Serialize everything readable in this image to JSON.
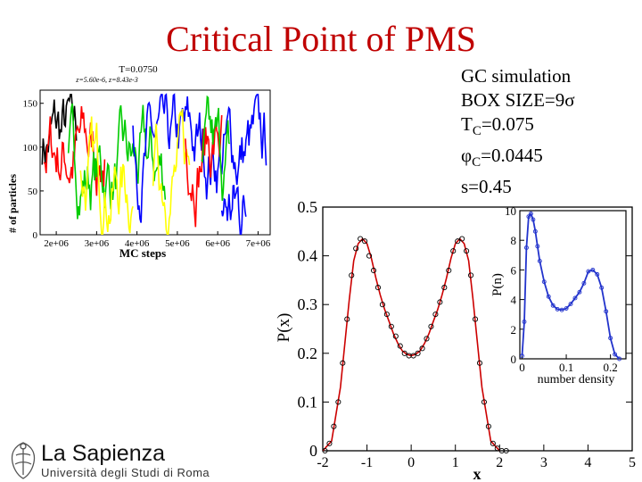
{
  "slide": {
    "title": "Critical Point of PMS",
    "info_lines": [
      {
        "main": "GC simulation"
      },
      {
        "main": "BOX SIZE=9",
        "greek": "σ"
      },
      {
        "main": "T",
        "sub": "C",
        "tail": "=0.075"
      },
      {
        "greek": "φ",
        "sub": "C",
        "tail": "=0.0445"
      },
      {
        "main": "s=0.45"
      }
    ],
    "logo_name": "La Sapienza",
    "logo_sub": "Università degli Studi di Roma"
  },
  "chart_data": [
    {
      "id": "mc_trace",
      "type": "line",
      "title": "T=0.0750",
      "subtitle": "z=5.60e-6, z=8.43e-3",
      "xlabel": "MC steps",
      "ylabel": "# of particles",
      "x_tick_labels": [
        "2e+06",
        "3e+06",
        "4e+06",
        "5e+06",
        "6e+06",
        "7e+06"
      ],
      "y_tick_labels": [
        "0",
        "50",
        "100",
        "150"
      ],
      "xlim": [
        1600000,
        7300000
      ],
      "ylim": [
        0,
        165
      ],
      "series_colors": [
        "#000000",
        "#ff0000",
        "#00cc00",
        "#0000ff",
        "#ffff00"
      ],
      "segments": [
        {
          "color": "#000000",
          "x_range": [
            1650000,
            2500000
          ],
          "center": 110
        },
        {
          "color": "#ff0000",
          "x_range": [
            1700000,
            3200000
          ],
          "center": 95
        },
        {
          "color": "#00cc00",
          "x_range": [
            2300000,
            4700000
          ],
          "center": 70
        },
        {
          "color": "#ffff00",
          "x_range": [
            2600000,
            3900000
          ],
          "center": 60
        },
        {
          "color": "#0000ff",
          "x_range": [
            3900000,
            7200000
          ],
          "center": 95
        },
        {
          "color": "#ffff00",
          "x_range": [
            4400000,
            5300000
          ],
          "center": 70
        },
        {
          "color": "#ff0000",
          "x_range": [
            5200000,
            6100000
          ],
          "center": 110
        },
        {
          "color": "#00cc00",
          "x_range": [
            5600000,
            6300000
          ],
          "center": 75
        },
        {
          "color": "#0000ff",
          "x_range": [
            6100000,
            6700000
          ],
          "center": 30
        }
      ]
    },
    {
      "id": "px",
      "type": "line",
      "xlabel": "x",
      "ylabel": "P(x)",
      "x_ticks": [
        -2,
        -1,
        0,
        1,
        2,
        3,
        4,
        5
      ],
      "y_ticks": [
        0,
        0.1,
        0.2,
        0.3,
        0.4,
        0.5
      ],
      "y_tick_labels": [
        "0",
        "0.1",
        "0.2",
        "0.3",
        "0.4",
        "0.5"
      ],
      "xlim": [
        -2,
        5
      ],
      "ylim": [
        0,
        0.5
      ],
      "series": [
        {
          "style": "line",
          "color": "#cc0000",
          "x": [
            -2.0,
            -1.8,
            -1.6,
            -1.4,
            -1.3,
            -1.2,
            -1.1,
            -1.0,
            -0.9,
            -0.8,
            -0.7,
            -0.6,
            -0.5,
            -0.4,
            -0.3,
            -0.2,
            -0.1,
            0.0,
            0.1,
            0.2,
            0.3,
            0.4,
            0.5,
            0.6,
            0.7,
            0.8,
            0.9,
            1.0,
            1.1,
            1.2,
            1.3,
            1.4,
            1.6,
            1.8,
            2.0
          ],
          "y": [
            0.0,
            0.02,
            0.13,
            0.31,
            0.39,
            0.425,
            0.435,
            0.425,
            0.395,
            0.355,
            0.32,
            0.29,
            0.265,
            0.24,
            0.22,
            0.205,
            0.198,
            0.195,
            0.198,
            0.205,
            0.22,
            0.24,
            0.265,
            0.29,
            0.32,
            0.355,
            0.395,
            0.425,
            0.435,
            0.425,
            0.39,
            0.31,
            0.13,
            0.02,
            0.0
          ]
        },
        {
          "style": "markers",
          "color": "#000000",
          "x": [
            -1.95,
            -1.85,
            -1.75,
            -1.65,
            -1.55,
            -1.45,
            -1.35,
            -1.25,
            -1.15,
            -1.05,
            -0.95,
            -0.85,
            -0.75,
            -0.65,
            -0.55,
            -0.45,
            -0.35,
            -0.25,
            -0.15,
            -0.05,
            0.05,
            0.15,
            0.25,
            0.35,
            0.45,
            0.55,
            0.65,
            0.75,
            0.85,
            0.95,
            1.05,
            1.15,
            1.25,
            1.35,
            1.45,
            1.55,
            1.65,
            1.75,
            1.85,
            1.95,
            2.05,
            2.15
          ],
          "y": [
            0.0,
            0.015,
            0.05,
            0.1,
            0.18,
            0.27,
            0.36,
            0.415,
            0.435,
            0.43,
            0.4,
            0.37,
            0.335,
            0.3,
            0.28,
            0.255,
            0.235,
            0.215,
            0.2,
            0.195,
            0.195,
            0.2,
            0.21,
            0.23,
            0.255,
            0.28,
            0.305,
            0.335,
            0.37,
            0.41,
            0.43,
            0.435,
            0.41,
            0.36,
            0.27,
            0.18,
            0.1,
            0.05,
            0.015,
            0.005,
            0.0,
            0.0
          ]
        }
      ]
    },
    {
      "id": "pn",
      "type": "line",
      "xlabel": "number density",
      "ylabel": "P(n)",
      "x_ticks": [
        0,
        0.1,
        0.2
      ],
      "x_tick_labels": [
        "0",
        "0.1",
        "0.2"
      ],
      "y_ticks": [
        0,
        2,
        4,
        6,
        8,
        10
      ],
      "y_tick_labels": [
        "0",
        "2",
        "4",
        "6",
        "8",
        "10"
      ],
      "xlim": [
        -0.005,
        0.235
      ],
      "ylim": [
        0,
        10
      ],
      "series": [
        {
          "style": "line+markers",
          "color": "#2233cc",
          "x": [
            0.0,
            0.005,
            0.01,
            0.015,
            0.02,
            0.025,
            0.03,
            0.035,
            0.04,
            0.05,
            0.06,
            0.07,
            0.08,
            0.09,
            0.1,
            0.11,
            0.12,
            0.13,
            0.14,
            0.15,
            0.16,
            0.17,
            0.18,
            0.19,
            0.2,
            0.21,
            0.22
          ],
          "y": [
            0.2,
            2.5,
            7.5,
            9.6,
            9.8,
            9.4,
            8.6,
            7.6,
            6.6,
            5.2,
            4.2,
            3.6,
            3.35,
            3.3,
            3.4,
            3.7,
            4.1,
            4.5,
            5.1,
            5.9,
            6.0,
            5.7,
            4.8,
            3.2,
            1.4,
            0.3,
            0.0
          ]
        }
      ]
    }
  ]
}
